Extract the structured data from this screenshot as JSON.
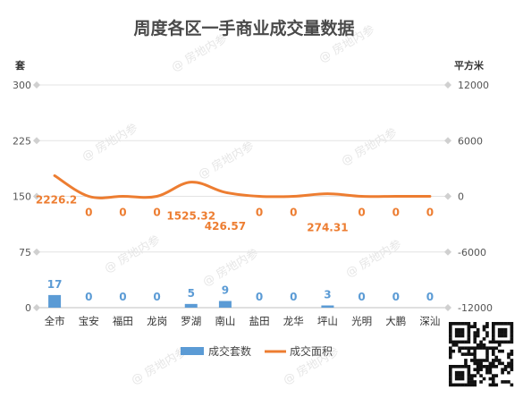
{
  "chart_data": {
    "type": "bar",
    "title": "周度各区一手商业成交量数据",
    "left_unit": "套",
    "right_unit": "平方米",
    "categories": [
      "全市",
      "宝安",
      "福田",
      "龙岗",
      "罗湖",
      "南山",
      "盐田",
      "龙华",
      "坪山",
      "光明",
      "大鹏",
      "深汕"
    ],
    "left_axis": {
      "ylim": [
        0,
        300
      ],
      "ticks": [
        "0",
        "75",
        "150",
        "225",
        "300"
      ]
    },
    "right_axis": {
      "ylim": [
        -12000,
        12000
      ],
      "ticks": [
        "-12000",
        "-6000",
        "0",
        "6000",
        "12000"
      ]
    },
    "series": [
      {
        "name": "成交套数",
        "type": "bar",
        "axis": "left",
        "color": "#5b9bd5",
        "values": [
          17,
          0,
          0,
          0,
          5,
          9,
          0,
          0,
          3,
          0,
          0,
          0
        ],
        "labels": [
          "17",
          "0",
          "0",
          "0",
          "5",
          "9",
          "0",
          "0",
          "3",
          "0",
          "0",
          "0"
        ]
      },
      {
        "name": "成交面积",
        "type": "line",
        "axis": "right",
        "color": "#ed7d31",
        "values": [
          2226.2,
          0,
          0,
          0,
          1525.32,
          426.57,
          0,
          0,
          274.31,
          0,
          0,
          0
        ],
        "labels": [
          "2226.2",
          "0",
          "0",
          "0",
          "1525.32",
          "426.57",
          "0",
          "0",
          "274.31",
          "0",
          "0",
          "0"
        ]
      }
    ],
    "grid": true,
    "legend": "bottom"
  },
  "watermark": "@ 房地内参"
}
